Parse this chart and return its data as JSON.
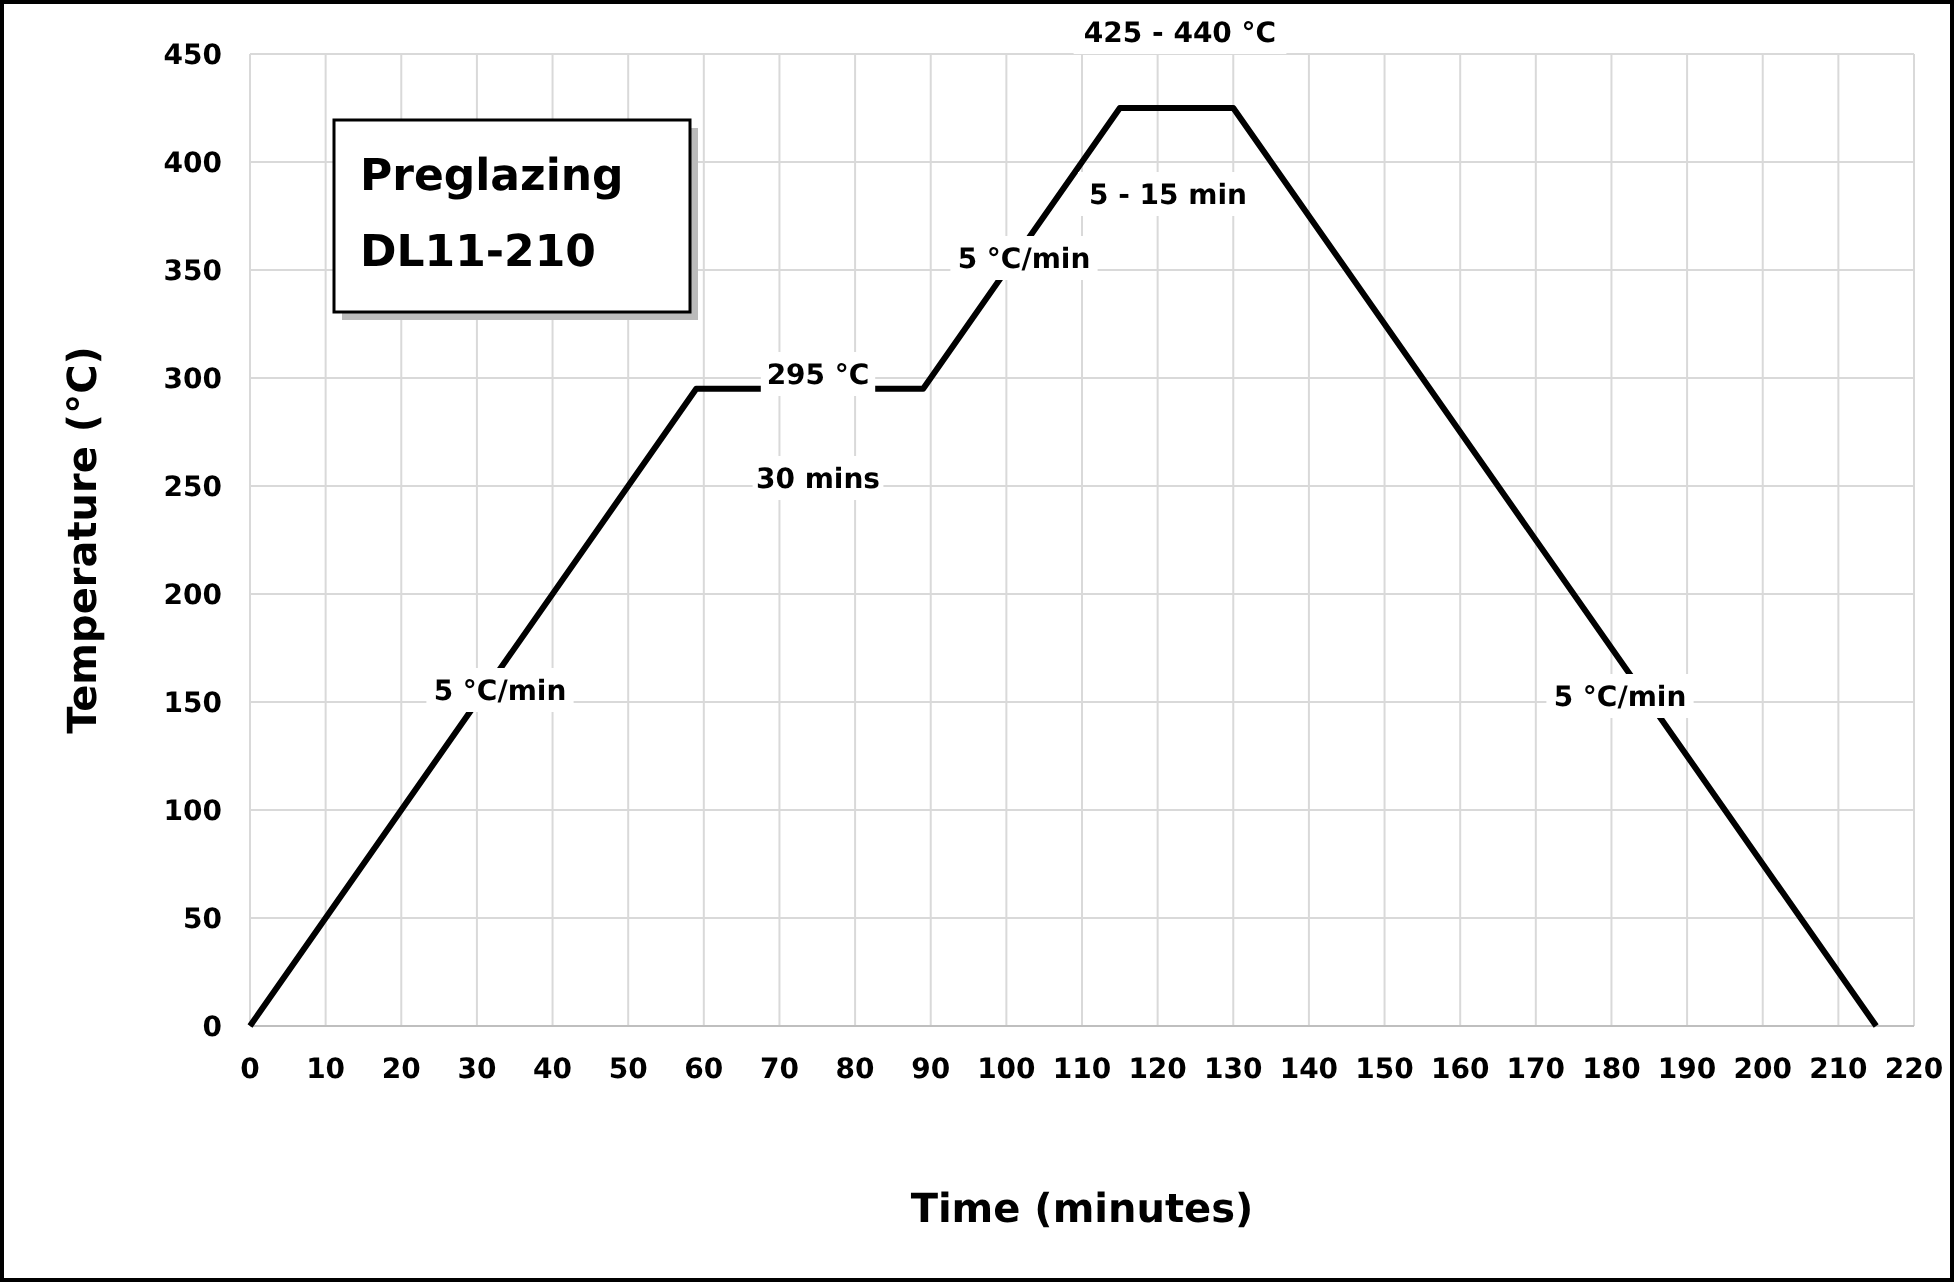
{
  "chart_data": {
    "type": "line",
    "title": "Preglazing\nDL11-210",
    "xlabel": "Time (minutes)",
    "ylabel": "Temperature (°C)",
    "x": [
      0,
      59,
      89,
      115,
      130,
      215
    ],
    "series": [
      {
        "color": "#000000",
        "values": [
          0,
          295,
          295,
          425,
          425,
          0
        ]
      }
    ],
    "xlim": [
      0,
      220
    ],
    "xticks": [
      0,
      10,
      20,
      30,
      40,
      50,
      60,
      70,
      80,
      90,
      100,
      110,
      120,
      130,
      140,
      150,
      160,
      170,
      180,
      190,
      200,
      210,
      220
    ],
    "ylim": [
      0,
      450
    ],
    "yticks": [
      0,
      50,
      100,
      150,
      200,
      250,
      300,
      350,
      400,
      450
    ],
    "grid": true,
    "marker": "none",
    "line_style": "solid",
    "annotations": [
      "5 °C/min",
      "295 °C",
      "30 mins",
      "5 °C/min",
      "425 - 440 °C",
      "5 - 15 min",
      "5 °C/min"
    ]
  }
}
